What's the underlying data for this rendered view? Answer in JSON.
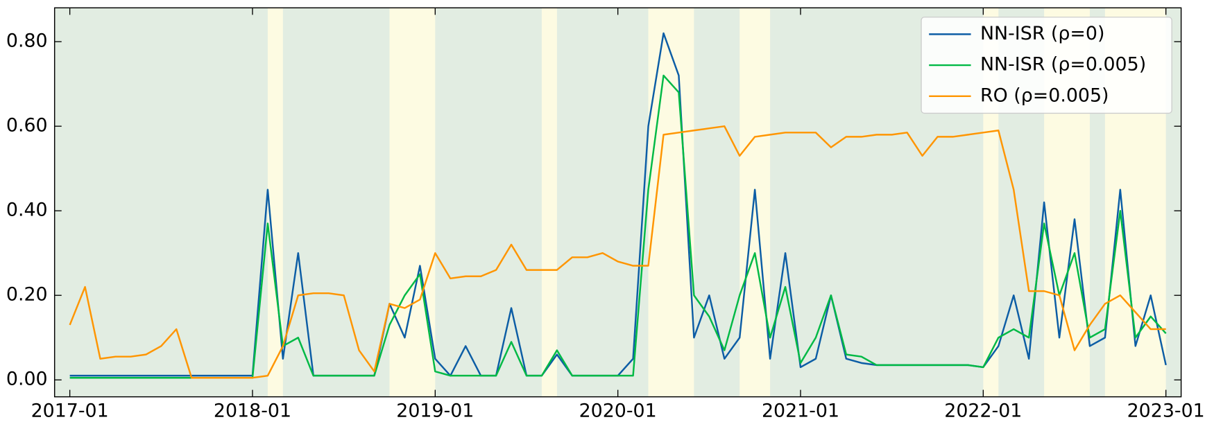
{
  "chart_data": {
    "type": "line",
    "x": [
      "2017-01",
      "2017-02",
      "2017-03",
      "2017-04",
      "2017-05",
      "2017-06",
      "2017-07",
      "2017-08",
      "2017-09",
      "2017-10",
      "2017-11",
      "2017-12",
      "2018-01",
      "2018-02",
      "2018-03",
      "2018-04",
      "2018-05",
      "2018-06",
      "2018-07",
      "2018-08",
      "2018-09",
      "2018-10",
      "2018-11",
      "2018-12",
      "2019-01",
      "2019-02",
      "2019-03",
      "2019-04",
      "2019-05",
      "2019-06",
      "2019-07",
      "2019-08",
      "2019-09",
      "2019-10",
      "2019-11",
      "2019-12",
      "2020-01",
      "2020-02",
      "2020-03",
      "2020-04",
      "2020-05",
      "2020-06",
      "2020-07",
      "2020-08",
      "2020-09",
      "2020-10",
      "2020-11",
      "2020-12",
      "2021-01",
      "2021-02",
      "2021-03",
      "2021-04",
      "2021-05",
      "2021-06",
      "2021-07",
      "2021-08",
      "2021-09",
      "2021-10",
      "2021-11",
      "2021-12",
      "2022-01",
      "2022-02",
      "2022-03",
      "2022-04",
      "2022-05",
      "2022-06",
      "2022-07",
      "2022-08",
      "2022-09",
      "2022-10",
      "2022-11",
      "2022-12",
      "2023-01"
    ],
    "series": [
      {
        "name": "NN-ISR (ρ=0)",
        "color": "#0c5da5",
        "values": [
          0.01,
          0.01,
          0.01,
          0.01,
          0.01,
          0.01,
          0.01,
          0.01,
          0.01,
          0.01,
          0.01,
          0.01,
          0.01,
          0.45,
          0.05,
          0.3,
          0.01,
          0.01,
          0.01,
          0.01,
          0.01,
          0.18,
          0.1,
          0.27,
          0.05,
          0.01,
          0.08,
          0.01,
          0.01,
          0.17,
          0.01,
          0.01,
          0.06,
          0.01,
          0.01,
          0.01,
          0.01,
          0.05,
          0.6,
          0.82,
          0.72,
          0.1,
          0.2,
          0.05,
          0.1,
          0.45,
          0.05,
          0.3,
          0.03,
          0.05,
          0.2,
          0.05,
          0.04,
          0.035,
          0.035,
          0.035,
          0.035,
          0.035,
          0.035,
          0.035,
          0.03,
          0.08,
          0.2,
          0.05,
          0.42,
          0.1,
          0.38,
          0.08,
          0.1,
          0.45,
          0.08,
          0.2,
          0.035
        ]
      },
      {
        "name": "NN-ISR (ρ=0.005)",
        "color": "#00b945",
        "values": [
          0.005,
          0.005,
          0.005,
          0.005,
          0.005,
          0.005,
          0.005,
          0.005,
          0.005,
          0.005,
          0.005,
          0.005,
          0.005,
          0.37,
          0.08,
          0.1,
          0.01,
          0.01,
          0.01,
          0.01,
          0.01,
          0.13,
          0.2,
          0.25,
          0.02,
          0.01,
          0.01,
          0.01,
          0.01,
          0.09,
          0.01,
          0.01,
          0.07,
          0.01,
          0.01,
          0.01,
          0.01,
          0.01,
          0.45,
          0.72,
          0.68,
          0.2,
          0.15,
          0.07,
          0.2,
          0.3,
          0.1,
          0.22,
          0.04,
          0.1,
          0.2,
          0.06,
          0.055,
          0.035,
          0.035,
          0.035,
          0.035,
          0.035,
          0.035,
          0.035,
          0.03,
          0.1,
          0.12,
          0.1,
          0.37,
          0.2,
          0.3,
          0.1,
          0.12,
          0.4,
          0.1,
          0.15,
          0.11
        ]
      },
      {
        "name": "RO (ρ=0.005)",
        "color": "#ff9500",
        "values": [
          0.13,
          0.22,
          0.05,
          0.055,
          0.055,
          0.06,
          0.08,
          0.12,
          0.005,
          0.005,
          0.005,
          0.005,
          0.005,
          0.01,
          0.08,
          0.2,
          0.205,
          0.205,
          0.2,
          0.07,
          0.02,
          0.18,
          0.17,
          0.19,
          0.3,
          0.24,
          0.245,
          0.245,
          0.26,
          0.32,
          0.26,
          0.26,
          0.26,
          0.29,
          0.29,
          0.3,
          0.28,
          0.27,
          0.27,
          0.58,
          0.585,
          0.59,
          0.595,
          0.6,
          0.53,
          0.575,
          0.58,
          0.585,
          0.585,
          0.585,
          0.55,
          0.575,
          0.575,
          0.58,
          0.58,
          0.585,
          0.53,
          0.575,
          0.575,
          0.58,
          0.585,
          0.59,
          0.45,
          0.21,
          0.21,
          0.2,
          0.07,
          0.13,
          0.18,
          0.2,
          0.16,
          0.12,
          0.12
        ]
      }
    ],
    "xlim": [
      "2016-12",
      "2023-02"
    ],
    "xticks": [
      "2017-01",
      "2018-01",
      "2019-01",
      "2020-01",
      "2021-01",
      "2022-01",
      "2023-01"
    ],
    "ylim": [
      -0.04,
      0.88
    ],
    "yticks": [
      {
        "value": 0,
        "label": "0.00"
      },
      {
        "value": 0.2,
        "label": "0.20"
      },
      {
        "value": 0.4,
        "label": "0.40"
      },
      {
        "value": 0.6,
        "label": "0.60"
      },
      {
        "value": 0.8,
        "label": "0.80"
      }
    ],
    "shaded_regions": {
      "background": "#e2ede2",
      "color": "#fdfbe2",
      "spans": [
        [
          "2018-02",
          "2018-03"
        ],
        [
          "2018-10",
          "2019-01"
        ],
        [
          "2019-08",
          "2019-09"
        ],
        [
          "2020-03",
          "2020-06"
        ],
        [
          "2020-09",
          "2020-11"
        ],
        [
          "2022-01",
          "2022-02"
        ],
        [
          "2022-05",
          "2022-08"
        ],
        [
          "2022-09",
          "2023-01"
        ]
      ]
    },
    "legend": "upper right"
  }
}
